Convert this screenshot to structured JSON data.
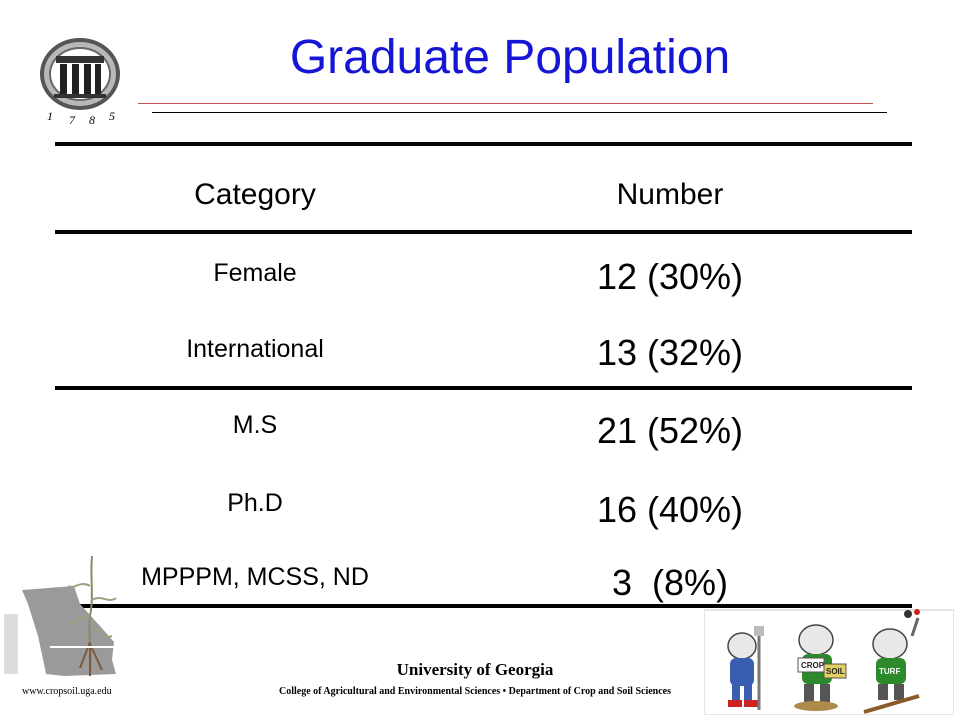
{
  "slide": {
    "title": "Graduate Population",
    "logo_year_digits": [
      "1",
      "7",
      "8",
      "5"
    ]
  },
  "table": {
    "headers": {
      "category": "Category",
      "number": "Number"
    },
    "rows": [
      {
        "category": "Female",
        "number": "12 (30%)"
      },
      {
        "category": "International",
        "number": "13 (32%)"
      },
      {
        "category": "M.S",
        "number": "21 (52%)"
      },
      {
        "category": "Ph.D",
        "number": "16 (40%)"
      },
      {
        "category": "MPPPM, MCSS, ND",
        "number": "3  (8%)"
      }
    ]
  },
  "footer": {
    "website": "www.cropsoil.uga.edu",
    "university": "University of Georgia",
    "college": "College of Agricultural and Environmental Sciences • Department of Crop and Soil Sciences",
    "mascot_signs": [
      "CROP",
      "SOIL",
      "TURF"
    ]
  },
  "colors": {
    "title": "#1515d6",
    "rule_red": "#c0504d"
  }
}
